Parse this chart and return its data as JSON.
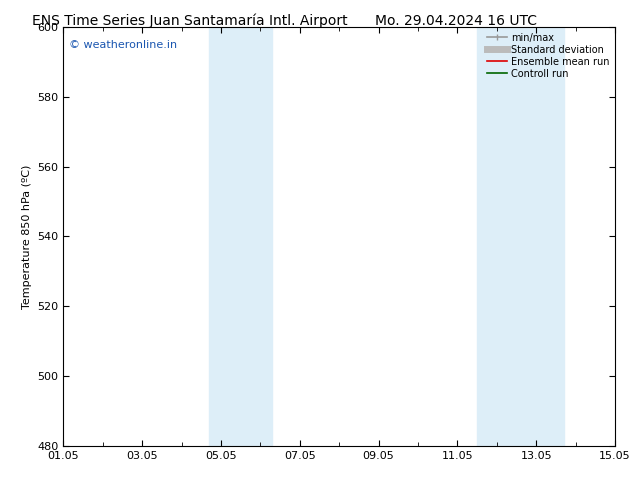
{
  "title_left": "ENS Time Series Juan Santamaría Intl. Airport",
  "title_right": "Mo. 29.04.2024 16 UTC",
  "ylabel": "Temperature 850 hPa (ºC)",
  "ylim": [
    480,
    600
  ],
  "yticks": [
    480,
    500,
    520,
    540,
    560,
    580,
    600
  ],
  "xlim_start": 0,
  "xlim_end": 14,
  "xtick_positions": [
    0,
    2,
    4,
    6,
    8,
    10,
    12,
    14
  ],
  "xtick_labels": [
    "01.05",
    "03.05",
    "05.05",
    "07.05",
    "09.05",
    "11.05",
    "13.05",
    "15.05"
  ],
  "xtick_minor_positions": [
    1,
    3,
    5,
    7,
    9,
    11,
    13
  ],
  "shaded_bands": [
    {
      "xmin": 3.7,
      "xmax": 5.3
    },
    {
      "xmin": 10.5,
      "xmax": 12.7
    }
  ],
  "shade_color": "#ddeef8",
  "watermark_text": "© weatheronline.in",
  "watermark_color": "#1a56b0",
  "watermark_fontsize": 8,
  "background_color": "#ffffff",
  "legend_items": [
    {
      "label": "min/max",
      "color": "#999999",
      "lw": 1.2
    },
    {
      "label": "Standard deviation",
      "color": "#bbbbbb",
      "lw": 5
    },
    {
      "label": "Ensemble mean run",
      "color": "#dd0000",
      "lw": 1.2
    },
    {
      "label": "Controll run",
      "color": "#006600",
      "lw": 1.2
    }
  ],
  "title_fontsize": 10,
  "axis_fontsize": 8,
  "tick_fontsize": 8
}
